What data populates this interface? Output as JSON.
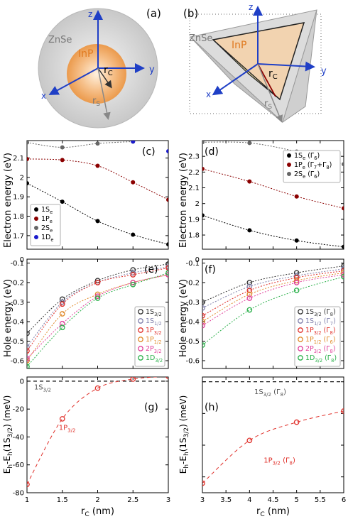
{
  "panels": {
    "a": {
      "tag": "(a)",
      "shell": "ZnSe",
      "core": "InP",
      "rc": "r",
      "rc_sub": "C",
      "rs": "r",
      "rs_sub": "S",
      "ax": {
        "x": "x",
        "y": "y",
        "z": "z"
      }
    },
    "b": {
      "tag": "(b)",
      "shell": "ZnSe",
      "core": "InP",
      "rc": "r",
      "rc_sub": "C",
      "rs": "r",
      "rs_sub": "S",
      "ax": {
        "x": "x",
        "y": "y",
        "z": "z"
      }
    }
  },
  "chart_data": [
    {
      "id": "c",
      "tag": "(c)",
      "type": "scatter",
      "ylabel": "Electron energy (eV)",
      "xlim": [
        1,
        3
      ],
      "ylim": [
        1.63,
        2.19
      ],
      "xticks": [
        1,
        1.5,
        2,
        2.5,
        3
      ],
      "xticklabels": [
        "",
        "",
        "",
        "",
        ""
      ],
      "yticks": [
        1.7,
        1.8,
        1.9,
        2.0,
        2.1
      ],
      "yticklabels": [
        "1.7",
        "1.8",
        "1.9",
        "2",
        "2.1"
      ],
      "legend": {
        "position": "bottom-left"
      },
      "series": [
        {
          "name": "1S",
          "sub": "e",
          "color": "#000000",
          "fit": true,
          "x": [
            1,
            1.5,
            2,
            2.5,
            3
          ],
          "y": [
            1.97,
            1.875,
            1.775,
            1.705,
            1.655
          ]
        },
        {
          "name": "1P",
          "sub": "e",
          "color": "#8b0000",
          "fit": true,
          "x": [
            1,
            1.5,
            2,
            2.5,
            3
          ],
          "y": [
            2.095,
            2.09,
            2.06,
            1.975,
            1.885
          ]
        },
        {
          "name": "2S",
          "sub": "e",
          "color": "#666666",
          "fit": true,
          "x": [
            1,
            1.5,
            2,
            2.5
          ],
          "y": [
            2.18,
            2.155,
            2.175,
            2.185
          ]
        },
        {
          "name": "1D",
          "sub": "e",
          "color": "#1a1acc",
          "fit": false,
          "x": [
            2.5,
            3
          ],
          "y": [
            2.185,
            2.135
          ]
        }
      ]
    },
    {
      "id": "d",
      "tag": "(d)",
      "type": "scatter",
      "ylabel": "",
      "xlim": [
        3,
        6
      ],
      "ylim": [
        1.71,
        2.4
      ],
      "xticks": [
        3,
        3.5,
        4,
        4.5,
        5,
        5.5,
        6
      ],
      "xticklabels": [
        "",
        "",
        "",
        "",
        "",
        "",
        ""
      ],
      "yticks": [
        1.8,
        1.9,
        2.0,
        2.1,
        2.2,
        2.3
      ],
      "yticklabels": [
        "1.8",
        "1.9",
        "2",
        "2.1",
        "2.2",
        "2.3"
      ],
      "legend": {
        "position": "top-right"
      },
      "series": [
        {
          "name": "1S",
          "sub": "e",
          "suffix": " (Γ",
          "suffix_sub": "6",
          "suffix_end": ")",
          "color": "#000000",
          "fit": true,
          "x": [
            3,
            4,
            5,
            6
          ],
          "y": [
            1.925,
            1.83,
            1.765,
            1.725
          ]
        },
        {
          "name": "1P",
          "sub": "e",
          "suffix": " (Γ",
          "suffix_sub": "7",
          "suffix_mid": "+Γ",
          "suffix_sub2": "8",
          "suffix_end": ")",
          "color": "#8b0000",
          "fit": true,
          "x": [
            3,
            4,
            5,
            6
          ],
          "y": [
            2.22,
            2.14,
            2.045,
            1.97
          ]
        },
        {
          "name": "2S",
          "sub": "e",
          "suffix": " (Γ",
          "suffix_sub": "6",
          "suffix_end": ")",
          "color": "#666666",
          "fit": true,
          "x": [
            3,
            4,
            5,
            6
          ],
          "y": [
            2.39,
            2.385,
            2.33,
            2.25
          ]
        }
      ]
    },
    {
      "id": "e",
      "tag": "(e)",
      "type": "scatter",
      "ylabel": "Hole energy (eV)",
      "xlim": [
        1,
        3
      ],
      "ylim": [
        -0.64,
        -0.08
      ],
      "xticks": [
        1,
        1.5,
        2,
        2.5,
        3
      ],
      "xticklabels": [
        "",
        "",
        "",
        "",
        ""
      ],
      "yticks": [
        -0.6,
        -0.5,
        -0.4,
        -0.3,
        -0.2,
        -0.1
      ],
      "yticklabels": [
        "-0.6",
        "-0.5",
        "-0.4",
        "-0.3",
        "-0.2",
        "-0.1"
      ],
      "top_tick": "0",
      "legend": {
        "position": "bottom-right"
      },
      "series": [
        {
          "name": "1S",
          "sub": "3/2",
          "color": "#333333",
          "x": [
            1,
            1.5,
            2,
            2.5,
            3
          ],
          "y": [
            -0.46,
            -0.285,
            -0.19,
            -0.135,
            -0.105
          ]
        },
        {
          "name": "1S",
          "sub": "1/2",
          "color": "#7f7faa",
          "x": [
            1,
            1.5,
            2,
            2.5,
            3
          ],
          "y": [
            -0.53,
            -0.3,
            -0.2,
            -0.15,
            -0.12
          ]
        },
        {
          "name": "1P",
          "sub": "3/2",
          "color": "#e0302a",
          "x": [
            1,
            1.5,
            2,
            2.5,
            3
          ],
          "y": [
            -0.55,
            -0.31,
            -0.2,
            -0.16,
            -0.125
          ]
        },
        {
          "name": "1P",
          "sub": "1/2",
          "color": "#e08a2a",
          "x": [
            1,
            1.5,
            2,
            2.5,
            3
          ],
          "y": [
            -0.6,
            -0.36,
            -0.26,
            -0.2,
            -0.16
          ]
        },
        {
          "name": "2P",
          "sub": "3/2",
          "color": "#e0409a",
          "x": [
            1,
            1.5,
            2,
            2.5,
            3
          ],
          "y": [
            -0.59,
            -0.41,
            -0.27,
            -0.2,
            -0.16
          ]
        },
        {
          "name": "1D",
          "sub": "3/2",
          "color": "#2ab04a",
          "x": [
            1,
            1.5,
            2,
            2.5,
            3
          ],
          "y": [
            -0.63,
            -0.43,
            -0.28,
            -0.21,
            -0.15
          ]
        }
      ]
    },
    {
      "id": "f",
      "tag": "(f)",
      "type": "scatter",
      "ylabel": "",
      "xlim": [
        3,
        6
      ],
      "ylim": [
        -0.64,
        -0.08
      ],
      "xticks": [
        3,
        3.5,
        4,
        4.5,
        5,
        5.5,
        6
      ],
      "xticklabels": [
        "",
        "",
        "",
        "",
        "",
        "",
        ""
      ],
      "yticks": [
        -0.6,
        -0.5,
        -0.4,
        -0.3,
        -0.2,
        -0.1
      ],
      "yticklabels": [
        "-0.6",
        "-0.5",
        "-0.4",
        "-0.3",
        "-0.2",
        "-0.1"
      ],
      "top_tick": "0",
      "legend": {
        "position": "bottom-right"
      },
      "series": [
        {
          "name": "1S",
          "sub": "3/2",
          "suffix": " (Γ",
          "suffix_sub": "8",
          "suffix_end": ")",
          "color": "#333333",
          "x": [
            3,
            4,
            5,
            6
          ],
          "y": [
            -0.3,
            -0.2,
            -0.15,
            -0.115
          ]
        },
        {
          "name": "1S",
          "sub": "1/2",
          "suffix": " (Γ",
          "suffix_sub": "7",
          "suffix_end": ")",
          "color": "#7f7faa",
          "x": [
            3,
            4,
            5,
            6
          ],
          "y": [
            -0.33,
            -0.22,
            -0.165,
            -0.13
          ]
        },
        {
          "name": "1P",
          "sub": "3/2",
          "suffix": " (Γ",
          "suffix_sub": "8",
          "suffix_end": ")",
          "color": "#e0302a",
          "x": [
            3,
            4,
            5,
            6
          ],
          "y": [
            -0.37,
            -0.24,
            -0.175,
            -0.14
          ]
        },
        {
          "name": "1P",
          "sub": "1/2",
          "suffix": " (Γ",
          "suffix_sub": "6",
          "suffix_end": ")",
          "color": "#e08a2a",
          "x": [
            3,
            4,
            5,
            6
          ],
          "y": [
            -0.4,
            -0.26,
            -0.19,
            -0.15
          ]
        },
        {
          "name": "2P",
          "sub": "3/2",
          "suffix": " (Γ",
          "suffix_sub": "8",
          "suffix_end": ")",
          "color": "#e0409a",
          "x": [
            3,
            4,
            5,
            6
          ],
          "y": [
            -0.42,
            -0.28,
            -0.2,
            -0.16
          ]
        },
        {
          "name": "1D",
          "sub": "3/2",
          "suffix": " (Γ",
          "suffix_sub": "8",
          "suffix_end": ")",
          "color": "#2ab04a",
          "x": [
            3,
            4,
            5,
            6
          ],
          "y": [
            -0.52,
            -0.34,
            -0.24,
            -0.17
          ]
        }
      ]
    },
    {
      "id": "g",
      "tag": "(g)",
      "type": "scatter",
      "ylabel": "",
      "xlabel": "r",
      "xlabel_sub": "C",
      "xlabel_end": " (nm)",
      "xlim": [
        1,
        3
      ],
      "ylim": [
        -80,
        3
      ],
      "xticks": [
        1,
        1.5,
        2,
        2.5,
        3
      ],
      "xticklabels": [
        "1",
        "1.5",
        "2",
        "2.5",
        "3"
      ],
      "yticks": [
        -80,
        -60,
        -40,
        -20,
        0
      ],
      "yticklabels": [
        "-80",
        "-60",
        "-40",
        "-20",
        "0"
      ],
      "ref_label": {
        "name": "1S",
        "sub": "3/2",
        "x": 1.1,
        "y": -4
      },
      "curve_label": {
        "name": "1P",
        "sub": "3/2",
        "x": 1.45,
        "y": -35
      },
      "series": [
        {
          "name": "1P",
          "sub": "3/2",
          "color": "#e0302a",
          "x": [
            1,
            1.5,
            2,
            2.5,
            3
          ],
          "y": [
            -74,
            -27,
            -5,
            1.5,
            3.5
          ]
        }
      ]
    },
    {
      "id": "h",
      "tag": "(h)",
      "type": "scatter",
      "ylabel": "",
      "xlabel": "r",
      "xlabel_sub": "C",
      "xlabel_end": " (nm)",
      "xlim": [
        3,
        6
      ],
      "ylim": [
        -70,
        3
      ],
      "xticks": [
        3,
        3.5,
        4,
        4.5,
        5,
        5.5,
        6
      ],
      "xticklabels": [
        "3",
        "3.5",
        "4",
        "4.5",
        "5",
        "5.5",
        "6"
      ],
      "yticks": [
        -60,
        -40,
        -20,
        0
      ],
      "yticklabels": [
        "",
        "",
        "",
        ""
      ],
      "ref_label": {
        "name": "1S",
        "sub": "3/2",
        "suffix": " (Γ",
        "suffix_sub": "8",
        "suffix_end": ")",
        "x": 4.1,
        "y": -6
      },
      "curve_label": {
        "name": "1P",
        "sub": "3/2",
        "suffix": " (Γ",
        "suffix_sub": "8",
        "suffix_end": ")",
        "x": 4.3,
        "y": -51
      },
      "series": [
        {
          "name": "1P",
          "sub": "3/2",
          "color": "#e0302a",
          "x": [
            3,
            4,
            5,
            6
          ],
          "y": [
            -64,
            -37,
            -25.5,
            -18.5
          ]
        }
      ]
    }
  ],
  "shared_ylabel_gh": {
    "a": "E",
    "a_sub": "h",
    "b": "-E",
    "b_sub": "h",
    "c": "(1S",
    "c_sub": "3/2",
    "d": ") (meV)"
  }
}
